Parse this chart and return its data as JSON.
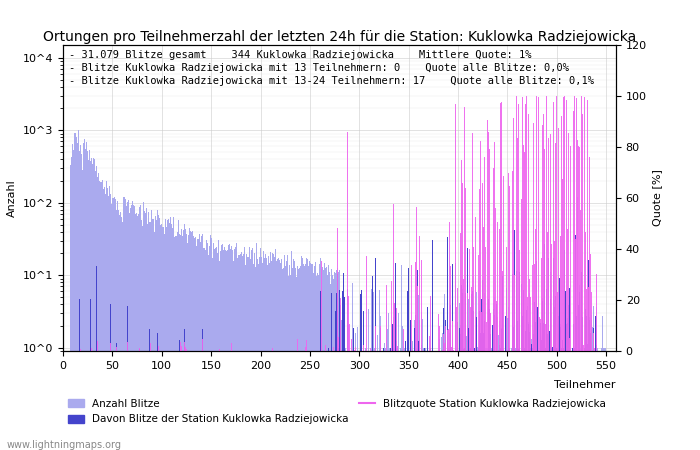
{
  "title": "Ortungen pro Teilnehmerzahl der letzten 24h für die Station: Kuklowka Radziejowicka",
  "xlabel": "Teilnehmer",
  "ylabel_left": "Anzahl",
  "ylabel_right": "Quote [%]",
  "annotation_lines": [
    "31.079 Blitze gesamt    344 Kuklowka Radziejowicka    Mittlere Quote: 1%",
    "Blitze Kuklowka Radziejowicka mit 13 Teilnehmern: 0    Quote alle Blitze: 0,0%",
    "Blitze Kuklowka Radziejowicka mit 13-24 Teilnehmern: 17    Quote alle Blitze: 0,1%"
  ],
  "watermark": "www.lightningmaps.org",
  "bar_color_total": "#aaaaee",
  "bar_color_station": "#4444cc",
  "line_color_quote": "#ee66ee",
  "legend_labels": [
    "Anzahl Blitze",
    "Davon Blitze der Station Kuklowka Radziejowicka",
    "Blitzquote Station Kuklowka Radziejowicka"
  ],
  "xlim": [
    0,
    560
  ],
  "ylim_left": [
    0.9,
    15000
  ],
  "ylim_right": [
    0,
    120
  ],
  "right_yticks": [
    0,
    20,
    40,
    60,
    80,
    100,
    120
  ],
  "xticks": [
    0,
    50,
    100,
    150,
    200,
    250,
    300,
    350,
    400,
    450,
    500,
    550
  ],
  "background_color": "#ffffff",
  "grid_color": "#cccccc",
  "title_fontsize": 10,
  "annotation_fontsize": 7.5,
  "tick_fontsize": 8,
  "label_fontsize": 8
}
